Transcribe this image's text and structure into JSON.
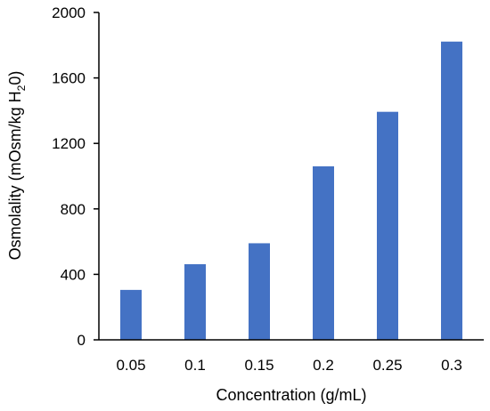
{
  "chart_data": {
    "type": "bar",
    "categories": [
      "0.05",
      "0.1",
      "0.15",
      "0.2",
      "0.25",
      "0.3"
    ],
    "values": [
      305,
      462,
      590,
      1060,
      1393,
      1822
    ],
    "title": "",
    "xlabel": "Concentration (g/mL)",
    "ylabel": {
      "before_sub": "Osmolality (mOsm/kg H",
      "sub": "2",
      "after_sub": "0)"
    },
    "ylim": [
      0,
      2000
    ],
    "yticks": [
      "0",
      "400",
      "800",
      "1200",
      "1600",
      "2000"
    ],
    "grid": false,
    "legend": "none",
    "bar_color": "#4472C4"
  }
}
